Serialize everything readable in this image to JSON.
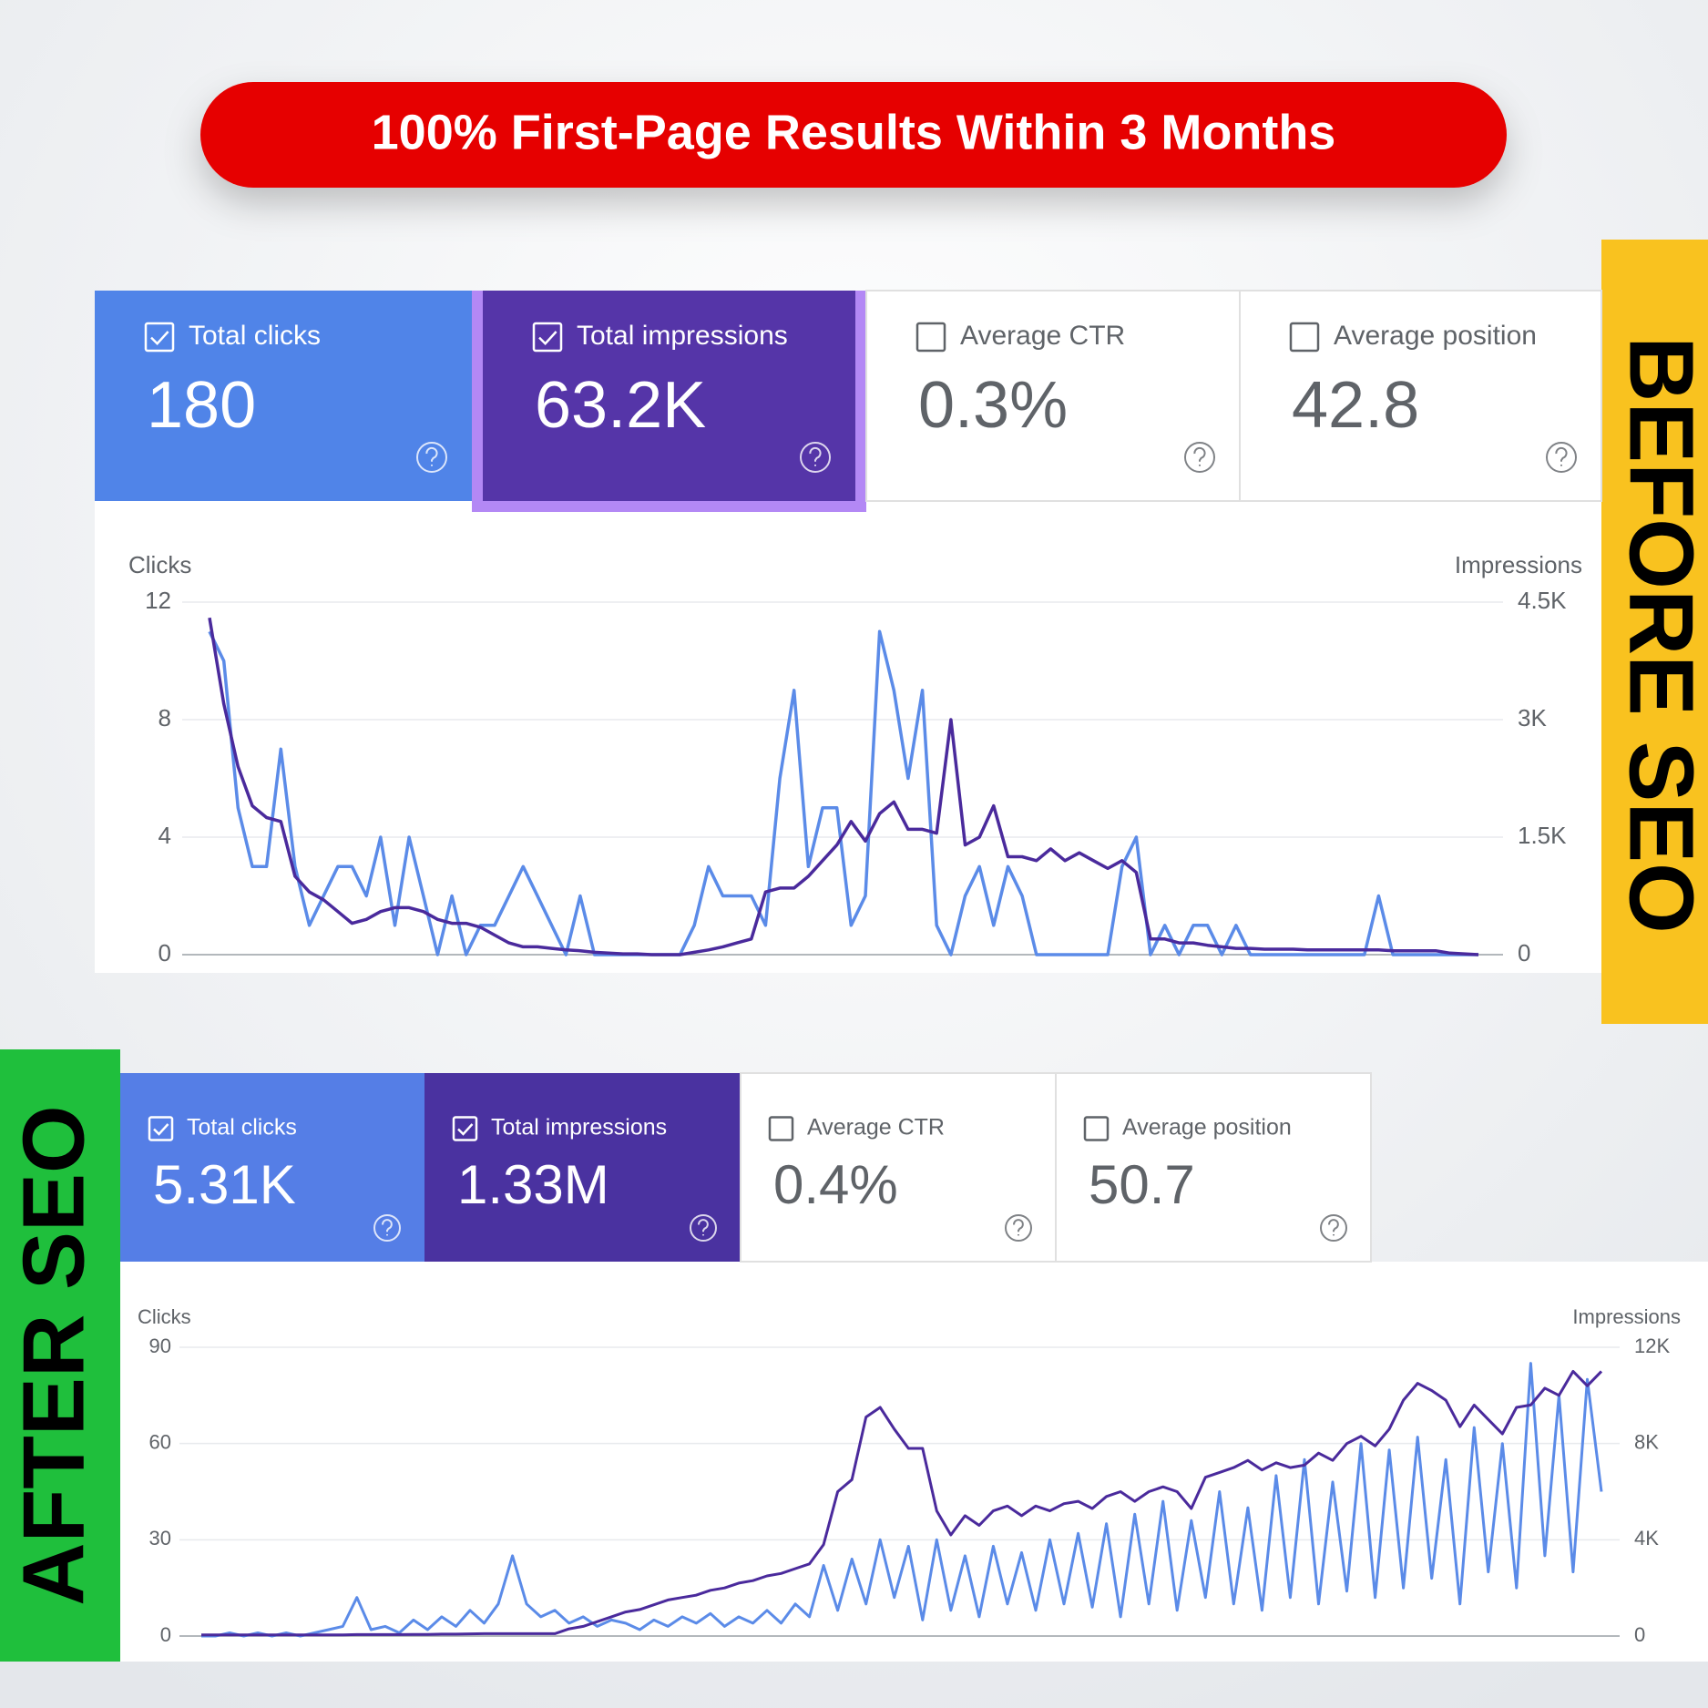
{
  "banner": {
    "title": "100% First-Page Results Within 3 Months"
  },
  "before": {
    "label": "BEFORE SEO",
    "cards": [
      {
        "label": "Total clicks",
        "value": "180",
        "checked": true
      },
      {
        "label": "Total impressions",
        "value": "63.2K",
        "checked": true
      },
      {
        "label": "Average CTR",
        "value": "0.3%",
        "checked": false
      },
      {
        "label": "Average position",
        "value": "42.8",
        "checked": false
      }
    ]
  },
  "after": {
    "label": "AFTER SEO",
    "cards": [
      {
        "label": "Total clicks",
        "value": "5.31K",
        "checked": true
      },
      {
        "label": "Total impressions",
        "value": "1.33M",
        "checked": true
      },
      {
        "label": "Average CTR",
        "value": "0.4%",
        "checked": false
      },
      {
        "label": "Average position",
        "value": "50.7",
        "checked": false
      }
    ]
  },
  "chart_data": [
    {
      "type": "line",
      "y_label": "Clicks",
      "y2_label": "Impressions",
      "ylim": [
        0,
        12
      ],
      "yticks": [
        0,
        4,
        8,
        12
      ],
      "y2lim": [
        0,
        4500
      ],
      "y2ticks": [
        0,
        {
          "value": 1500,
          "label": "1.5K"
        },
        {
          "value": 3000,
          "label": "3K"
        },
        {
          "value": 4500,
          "label": "4.5K"
        }
      ],
      "grid": true,
      "series": [
        {
          "name": "Clicks",
          "color": "#5b8be8",
          "values": [
            11,
            10,
            5,
            3,
            3,
            7,
            3,
            1,
            2,
            3,
            3,
            2,
            4,
            1,
            4,
            2,
            0,
            2,
            0,
            1,
            1,
            2,
            3,
            2,
            1,
            0,
            2,
            0,
            0,
            0,
            0,
            0,
            0,
            0,
            1,
            3,
            2,
            2,
            2,
            1,
            6,
            9,
            3,
            5,
            5,
            1,
            2,
            11,
            9,
            6,
            9,
            1,
            0,
            2,
            3,
            1,
            3,
            2,
            0,
            0,
            0,
            0,
            0,
            0,
            3,
            4,
            0,
            1,
            0,
            1,
            1,
            0,
            1,
            0,
            0,
            0,
            0,
            0,
            0,
            0,
            0,
            0,
            2,
            0,
            0,
            0,
            0,
            0,
            0,
            0
          ]
        },
        {
          "name": "Impressions",
          "color": "#4a2a9c",
          "axis": "y2",
          "values": [
            4300,
            3200,
            2400,
            1900,
            1750,
            1700,
            1000,
            800,
            700,
            550,
            400,
            450,
            550,
            600,
            600,
            550,
            450,
            400,
            400,
            350,
            250,
            150,
            100,
            100,
            80,
            60,
            50,
            30,
            20,
            10,
            10,
            0,
            0,
            0,
            30,
            60,
            100,
            150,
            200,
            800,
            850,
            850,
            1000,
            1200,
            1400,
            1700,
            1450,
            1800,
            1950,
            1600,
            1600,
            1550,
            3000,
            1400,
            1500,
            1900,
            1250,
            1250,
            1200,
            1350,
            1200,
            1300,
            1200,
            1100,
            1200,
            1050,
            200,
            200,
            150,
            150,
            120,
            100,
            80,
            80,
            70,
            70,
            70,
            60,
            60,
            60,
            60,
            60,
            60,
            50,
            50,
            50,
            50,
            20,
            10,
            0
          ]
        }
      ]
    },
    {
      "type": "line",
      "y_label": "Clicks",
      "y2_label": "Impressions",
      "ylim": [
        0,
        90
      ],
      "yticks": [
        0,
        30,
        60,
        90
      ],
      "y2lim": [
        0,
        12000
      ],
      "y2ticks": [
        0,
        {
          "value": 4000,
          "label": "4K"
        },
        {
          "value": 8000,
          "label": "8K"
        },
        {
          "value": 12000,
          "label": "12K"
        }
      ],
      "grid": true,
      "series": [
        {
          "name": "Clicks",
          "color": "#5b8be8",
          "values": [
            0,
            0,
            1,
            0,
            1,
            0,
            1,
            0,
            1,
            2,
            3,
            12,
            2,
            3,
            1,
            5,
            2,
            6,
            3,
            8,
            4,
            10,
            25,
            10,
            6,
            8,
            4,
            6,
            3,
            5,
            4,
            2,
            5,
            3,
            6,
            4,
            7,
            3,
            6,
            4,
            8,
            4,
            10,
            6,
            22,
            8,
            24,
            10,
            30,
            12,
            28,
            5,
            30,
            8,
            25,
            6,
            28,
            10,
            26,
            8,
            30,
            10,
            32,
            9,
            35,
            6,
            38,
            10,
            42,
            8,
            36,
            12,
            45,
            10,
            40,
            8,
            50,
            12,
            55,
            10,
            48,
            14,
            60,
            12,
            58,
            15,
            62,
            18,
            55,
            10,
            65,
            20,
            60,
            15,
            85,
            25,
            75,
            20,
            80,
            45
          ]
        },
        {
          "name": "Impressions",
          "color": "#4a2a9c",
          "axis": "y2",
          "values": [
            50,
            50,
            50,
            50,
            50,
            50,
            50,
            50,
            50,
            50,
            50,
            60,
            60,
            60,
            60,
            70,
            70,
            80,
            80,
            90,
            100,
            100,
            100,
            100,
            100,
            100,
            300,
            400,
            600,
            800,
            1000,
            1100,
            1300,
            1500,
            1600,
            1700,
            1900,
            2000,
            2200,
            2300,
            2500,
            2600,
            2800,
            3000,
            3800,
            6000,
            6500,
            9100,
            9500,
            8600,
            7800,
            7800,
            5200,
            4200,
            5000,
            4600,
            5200,
            5400,
            5000,
            5400,
            5200,
            5500,
            5600,
            5300,
            5800,
            6000,
            5600,
            6000,
            6200,
            6000,
            5300,
            6600,
            6800,
            7000,
            7300,
            6900,
            7200,
            7000,
            7100,
            7600,
            7300,
            8000,
            8300,
            7900,
            8600,
            9800,
            10500,
            10200,
            9800,
            8700,
            9600,
            9000,
            8400,
            9500,
            9600,
            10300,
            10000,
            11000,
            10400,
            11000
          ]
        }
      ]
    }
  ]
}
